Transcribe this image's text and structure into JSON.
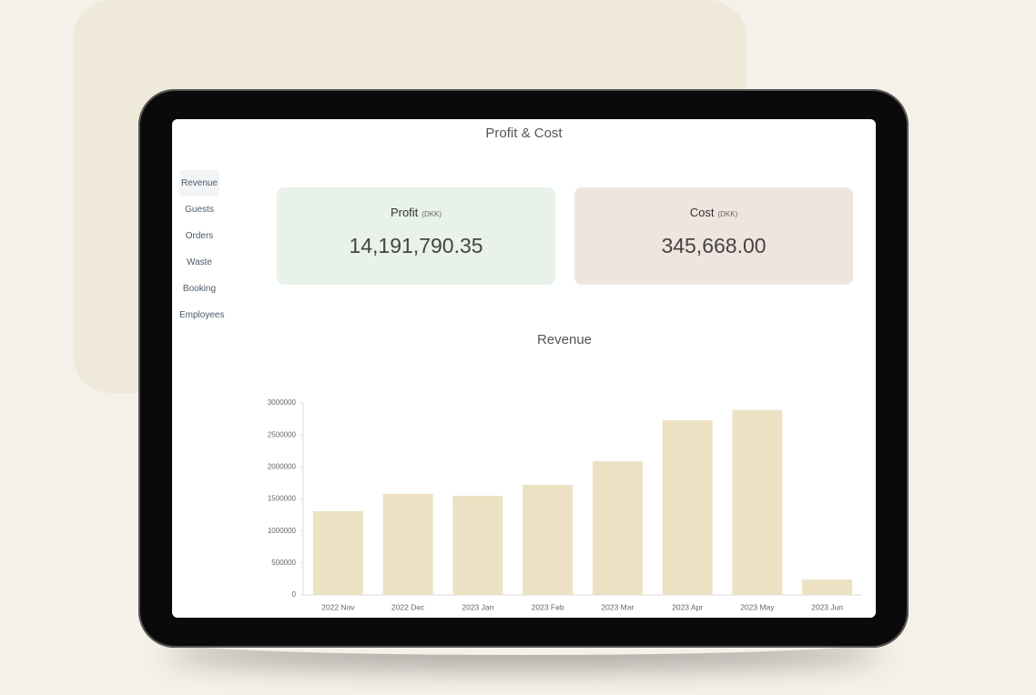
{
  "header": {
    "title": "Profit & Cost"
  },
  "nav": [
    "Revenue",
    "Guests",
    "Orders",
    "Waste",
    "Booking",
    "Employees"
  ],
  "cards": [
    {
      "label": "Profit",
      "unit": "(DKK)",
      "value": "14,191,790.35"
    },
    {
      "label": "Cost",
      "unit": "(DKK)",
      "value": "345,668.00"
    }
  ],
  "chart_data": {
    "type": "bar",
    "title": "Revenue",
    "categories": [
      "2022 Nov",
      "2022 Dec",
      "2023 Jan",
      "2023 Feb",
      "2023 Mar",
      "2023 Apr",
      "2023 May",
      "2023 Jun"
    ],
    "values": [
      1310000,
      1580000,
      1550000,
      1720000,
      2090000,
      2730000,
      2890000,
      240000
    ],
    "color": "#ece2c3",
    "ylim": [
      0,
      3000000
    ],
    "yticks": [
      0,
      500000,
      1000000,
      1500000,
      2000000,
      2500000,
      3000000
    ]
  }
}
